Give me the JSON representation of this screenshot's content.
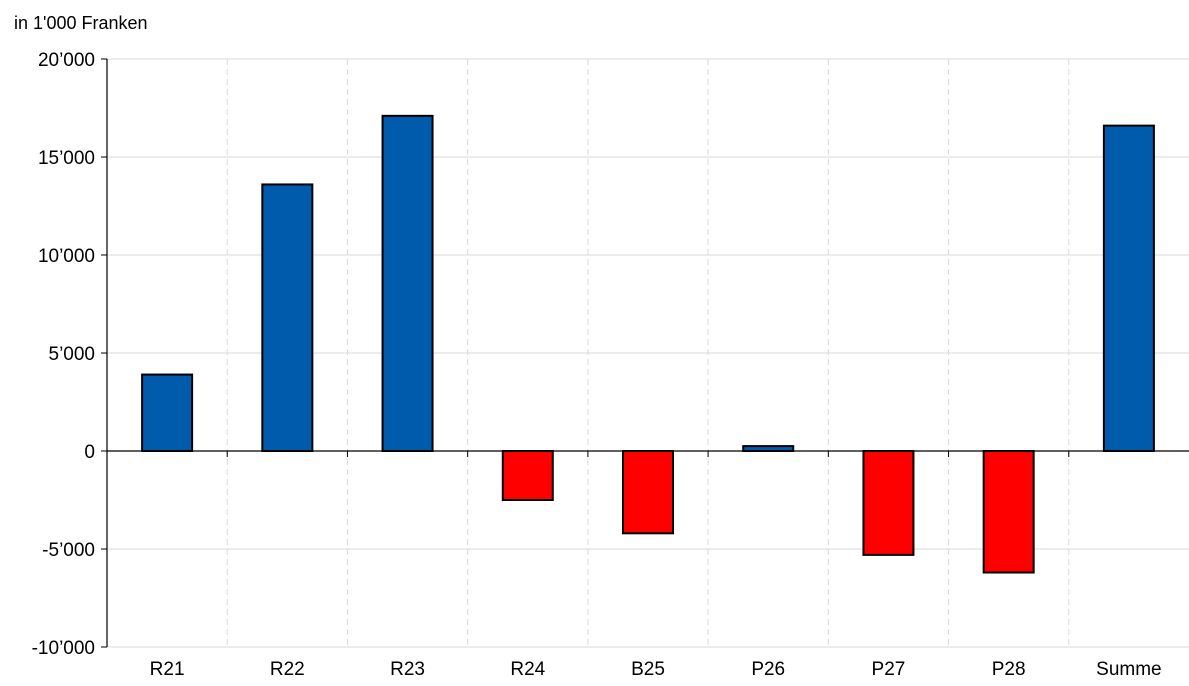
{
  "chart_data": {
    "type": "bar",
    "unit_label": "in 1'000 Franken",
    "categories": [
      "R21",
      "R22",
      "R23",
      "R24",
      "B25",
      "P26",
      "P27",
      "P28",
      "Summe"
    ],
    "values": [
      3900,
      13600,
      17100,
      -2500,
      -4200,
      250,
      -5300,
      -6200,
      16600
    ],
    "ylim": [
      -10000,
      20000
    ],
    "yticks": [
      20000,
      15000,
      10000,
      5000,
      0,
      -5000,
      -10000
    ],
    "ytick_labels": [
      "20’000",
      "15’000",
      "10’000",
      "5’000",
      "0",
      "-5’000",
      "-10’000"
    ],
    "grid": true,
    "legend": "none",
    "colors": {
      "positive": "#005BAC",
      "negative": "#FF0000",
      "bar_outline": "#000000",
      "grid": "#D9D9D9",
      "axis": "#000000"
    }
  }
}
